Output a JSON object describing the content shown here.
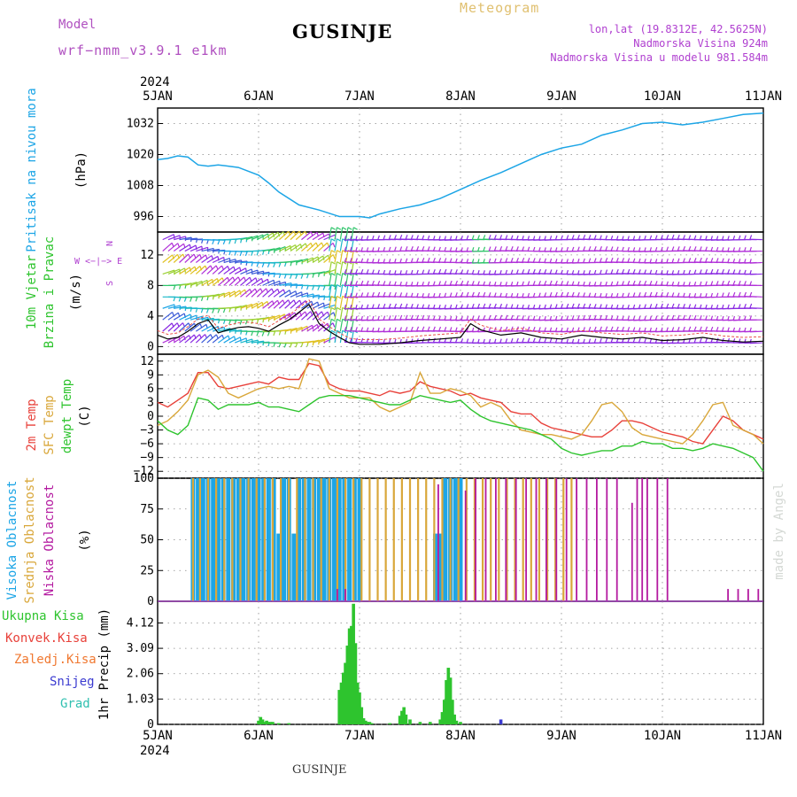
{
  "header": {
    "model_label": "Model",
    "model_name": "wrf−nmm_v3.9.1  e1km",
    "station": "GUSINJE",
    "product": "Meteogram",
    "lonlat": "lon,lat (19.8312E, 42.5625N)",
    "elevation": "Nadmorska Visina 924m",
    "model_elevation": "Nadmorska Visina u modelu 981.584m",
    "footer_station": "GUSINJE",
    "watermark": "made by Angel",
    "year_top": "2024",
    "year_bottom": "2024"
  },
  "colors": {
    "pressure": "#1ca5e6",
    "temp2m": "#e8413a",
    "sfc": "#d9a73a",
    "dew": "#2ec42e",
    "high_cloud": "#1ca5e6",
    "mid_cloud": "#d9a73a",
    "low_cloud": "#b41aa0",
    "precip_total": "#2ec42e",
    "precip_conv": "#e8413a",
    "precip_frz": "#f07830",
    "precip_snow": "#3a3ad0",
    "precip_grad": "#30c0b0",
    "model_label": "#b050c0",
    "product": "#e0c070",
    "meta": "#b040d0"
  },
  "chart_data": [
    {
      "type": "line",
      "panel": "pressure",
      "left_label": "Pritisak na nivou mora",
      "ylabel": "(hPa)",
      "ylim": [
        990,
        1038
      ],
      "yticks": [
        "996",
        "1008",
        "1020",
        "1032"
      ],
      "xticks": [
        "5JAN",
        "6JAN",
        "7JAN",
        "8JAN",
        "9JAN",
        "10JAN",
        "11JAN"
      ],
      "x_days": [
        0,
        0.1,
        0.2,
        0.3,
        0.4,
        0.5,
        0.6,
        0.8,
        1.0,
        1.1,
        1.2,
        1.4,
        1.6,
        1.8,
        2.0,
        2.1,
        2.2,
        2.4,
        2.6,
        2.8,
        3.0,
        3.2,
        3.4,
        3.6,
        3.8,
        4.0,
        4.2,
        4.4,
        4.6,
        4.8,
        5.0,
        5.2,
        5.4,
        5.6,
        5.8,
        6.0
      ],
      "values": [
        1018,
        1018.5,
        1019.5,
        1019,
        1016,
        1015.5,
        1016,
        1015,
        1012,
        1009,
        1005.5,
        1000.5,
        998.5,
        996,
        996,
        995.5,
        997,
        999,
        1000.5,
        1003,
        1006.5,
        1010,
        1013,
        1016.5,
        1020,
        1022.5,
        1024,
        1027.5,
        1029.5,
        1032,
        1032.5,
        1031.5,
        1032.5,
        1034,
        1035.5,
        1036
      ]
    },
    {
      "type": "barb",
      "panel": "wind",
      "left_label": "10m Vjetar",
      "left_label2": "Brzina i Pravac",
      "ylabel": "(m/s)",
      "legend_n": "N",
      "legend_we": "W <−|−> E",
      "legend_s": "S",
      "ylim": [
        -1,
        15
      ],
      "yticks": [
        "0",
        "4",
        "8",
        "12"
      ],
      "speed_x_days": [
        0,
        0.1,
        0.2,
        0.3,
        0.4,
        0.5,
        0.6,
        0.7,
        0.8,
        0.9,
        1.0,
        1.1,
        1.2,
        1.3,
        1.4,
        1.5,
        1.6,
        1.7,
        1.8,
        1.9,
        2.0,
        2.2,
        2.4,
        2.6,
        2.8,
        3.0,
        3.1,
        3.2,
        3.4,
        3.6,
        3.8,
        4.0,
        4.2,
        4.4,
        4.6,
        4.8,
        5.0,
        5.2,
        5.4,
        5.6,
        5.8,
        6.0
      ],
      "speed_values": [
        1.5,
        1.0,
        1.2,
        2.0,
        3.0,
        3.5,
        1.8,
        2.2,
        2.5,
        2.6,
        2.4,
        2.0,
        2.8,
        3.5,
        4.5,
        5.5,
        3.0,
        2.0,
        1.2,
        0.5,
        0.3,
        0.3,
        0.5,
        0.8,
        1.0,
        1.2,
        3.0,
        2.2,
        1.5,
        1.8,
        1.2,
        1.0,
        1.5,
        1.2,
        1.0,
        1.2,
        0.8,
        0.9,
        1.2,
        0.8,
        0.6,
        0.7
      ]
    },
    {
      "type": "line",
      "panel": "temperature",
      "left_label": "2m Temp",
      "left_label2": "SFC Temp",
      "left_label3": "dewpt Temp",
      "ylabel": "(C)",
      "ylim": [
        -13.5,
        13.5
      ],
      "yticks": [
        "12",
        "9",
        "6",
        "3",
        "0",
        "−3",
        "−6",
        "−9",
        "−12"
      ],
      "x_days": [
        0,
        0.1,
        0.2,
        0.3,
        0.4,
        0.5,
        0.6,
        0.7,
        0.8,
        0.9,
        1.0,
        1.1,
        1.2,
        1.3,
        1.4,
        1.5,
        1.6,
        1.7,
        1.8,
        1.9,
        2.0,
        2.1,
        2.2,
        2.3,
        2.4,
        2.5,
        2.6,
        2.7,
        2.8,
        2.9,
        3.0,
        3.1,
        3.2,
        3.3,
        3.4,
        3.5,
        3.6,
        3.7,
        3.8,
        3.9,
        4.0,
        4.1,
        4.2,
        4.3,
        4.4,
        4.5,
        4.6,
        4.7,
        4.8,
        4.9,
        5.0,
        5.1,
        5.2,
        5.3,
        5.4,
        5.5,
        5.6,
        5.7,
        5.8,
        5.9,
        6.0
      ],
      "series": [
        {
          "name": "2m Temp",
          "values": [
            3,
            2,
            3.5,
            5,
            9.5,
            9.5,
            6.5,
            6,
            6.5,
            7,
            7.5,
            7,
            8.5,
            8,
            8,
            11.5,
            11,
            7,
            6,
            5.5,
            5.5,
            5,
            4.5,
            5.5,
            5,
            5.5,
            7.5,
            6.5,
            6,
            5.5,
            4.5,
            5,
            4,
            3.5,
            3,
            1,
            0.5,
            0.5,
            -1.5,
            -2.5,
            -3,
            -3.5,
            -4,
            -4.5,
            -4.5,
            -3,
            -1,
            -1,
            -1.5,
            -2.5,
            -3.5,
            -4,
            -4.5,
            -5.5,
            -6,
            -3,
            0,
            -1,
            -3,
            -4,
            -5
          ]
        },
        {
          "name": "SFC Temp",
          "values": [
            -2,
            -1,
            1,
            3.5,
            9,
            10,
            8.5,
            5,
            4,
            5,
            6,
            6.5,
            6,
            6.5,
            6,
            12.5,
            12,
            6,
            5,
            4,
            4,
            4,
            2,
            1,
            2,
            3,
            9.5,
            5,
            5,
            6,
            5.5,
            4.5,
            2,
            3,
            2,
            -1,
            -3,
            -3.5,
            -4,
            -4,
            -4.5,
            -5,
            -4,
            -1,
            2.5,
            3,
            1,
            -2.5,
            -4,
            -4.5,
            -5,
            -5.5,
            -6,
            -4,
            -1,
            2.5,
            3,
            -2,
            -3,
            -4,
            -6
          ]
        },
        {
          "name": "dewpt Temp",
          "values": [
            -1,
            -3,
            -4,
            -2,
            4,
            3.5,
            1.5,
            2.5,
            2.5,
            2.5,
            3,
            2,
            2,
            1.5,
            1,
            2.5,
            4,
            4.5,
            4.5,
            4.5,
            4,
            3.5,
            3,
            2.5,
            2.5,
            3.5,
            4.5,
            4,
            3.5,
            3,
            3.5,
            1.5,
            0,
            -1,
            -1.5,
            -2,
            -2.5,
            -3,
            -4,
            -5,
            -7,
            -8,
            -8.5,
            -8,
            -7.5,
            -7.5,
            -6.5,
            -6.5,
            -5.5,
            -6,
            -6,
            -7,
            -7,
            -7.5,
            -7,
            -6,
            -6.5,
            -7,
            -8,
            -9,
            -12
          ]
        }
      ]
    },
    {
      "type": "bar",
      "panel": "cloud",
      "left_label": "Visoka Oblacnost",
      "left_label2": "Srednja Oblacnost",
      "left_label3": "Niska  Oblacnost",
      "ylabel": "(%)",
      "ylim": [
        0,
        100
      ],
      "yticks": [
        "0",
        "25",
        "50",
        "75",
        "100"
      ],
      "note": "high: ~100% from 5.35 to 7.0 d (dip to 50-55 near 6.4 d), scattered 7.7-8.0 d; mid: 100% 5.35-9.1 d with dips; low: scattered 8.0-9.6 d, isolated 9.7-10.1 d, small 10-15% near day 5.75-5.95",
      "high_x_days": [
        0.35,
        0.4,
        0.45,
        0.5,
        0.55,
        0.6,
        0.65,
        0.7,
        0.75,
        0.8,
        0.85,
        0.9,
        0.95,
        1.0,
        1.05,
        1.1,
        1.15,
        1.2,
        1.25,
        1.3,
        1.35,
        1.4,
        1.45,
        1.5,
        1.55,
        1.6,
        1.65,
        1.7,
        1.75,
        1.8,
        1.85,
        1.9,
        1.95,
        2.0,
        2.75,
        2.8,
        2.85,
        2.9,
        2.95,
        3.0
      ],
      "high_values": [
        100,
        100,
        100,
        100,
        100,
        100,
        100,
        100,
        100,
        100,
        100,
        100,
        100,
        100,
        100,
        100,
        100,
        55,
        100,
        100,
        55,
        100,
        100,
        100,
        100,
        100,
        100,
        100,
        100,
        100,
        100,
        100,
        100,
        100,
        55,
        55,
        100,
        100,
        100,
        100
      ],
      "mid_x_days": [
        0.35,
        0.42,
        0.5,
        0.58,
        0.66,
        0.74,
        0.82,
        0.9,
        0.98,
        1.06,
        1.14,
        1.22,
        1.3,
        1.38,
        1.46,
        1.54,
        1.62,
        1.7,
        1.78,
        1.86,
        1.94,
        2.02,
        2.1,
        2.18,
        2.26,
        2.34,
        2.42,
        2.5,
        2.58,
        2.66,
        2.74,
        2.82,
        2.9,
        2.98,
        3.06,
        3.14,
        3.22,
        3.3,
        3.38,
        3.46,
        3.54,
        3.62,
        3.7,
        3.78,
        3.86,
        3.94,
        4.02,
        4.1
      ],
      "mid_values": [
        100,
        100,
        100,
        100,
        100,
        100,
        100,
        100,
        100,
        100,
        100,
        100,
        100,
        100,
        100,
        100,
        100,
        100,
        100,
        100,
        100,
        100,
        100,
        100,
        100,
        100,
        100,
        100,
        100,
        100,
        100,
        100,
        100,
        100,
        100,
        100,
        100,
        100,
        100,
        100,
        100,
        100,
        100,
        100,
        100,
        100,
        100,
        100
      ],
      "low_x_days": [
        1.78,
        1.86,
        2.78,
        3.05,
        3.15,
        3.25,
        3.35,
        3.45,
        3.55,
        3.65,
        3.75,
        3.85,
        3.95,
        4.05,
        4.15,
        4.25,
        4.35,
        4.45,
        4.55,
        4.7,
        4.75,
        4.8,
        4.85,
        4.95,
        5.05,
        5.65,
        5.75,
        5.85,
        5.95
      ],
      "low_values": [
        10,
        10,
        95,
        90,
        100,
        100,
        100,
        100,
        100,
        100,
        100,
        100,
        100,
        100,
        100,
        100,
        100,
        100,
        100,
        80,
        100,
        100,
        100,
        100,
        100,
        10,
        10,
        10,
        10
      ]
    },
    {
      "type": "bar",
      "panel": "precip",
      "left_label": "Ukupna  Kisa",
      "left_label2": "Konvek.Kisa",
      "left_label3": "Zaledj.Kisa",
      "left_label4": "Snijeg",
      "left_label5": "Grad",
      "ylabel": "1hr Precip (mm)",
      "ylim": [
        0,
        5.0
      ],
      "yticks": [
        "0",
        "1.03",
        "2.06",
        "3.09",
        "4.12"
      ],
      "x_days": [
        1.0,
        1.02,
        1.04,
        1.06,
        1.08,
        1.1,
        1.12,
        1.14,
        1.2,
        1.3,
        1.8,
        1.82,
        1.84,
        1.86,
        1.88,
        1.9,
        1.92,
        1.94,
        1.96,
        1.98,
        2.0,
        2.02,
        2.04,
        2.06,
        2.08,
        2.1,
        2.12,
        2.3,
        2.4,
        2.42,
        2.44,
        2.46,
        2.5,
        2.6,
        2.7,
        2.8,
        2.82,
        2.84,
        2.86,
        2.88,
        2.9,
        2.92,
        2.94,
        2.96,
        3.0,
        3.4
      ],
      "values": [
        0.15,
        0.3,
        0.2,
        0.1,
        0.15,
        0.1,
        0.1,
        0.1,
        0.05,
        0.05,
        1.4,
        1.7,
        2.1,
        2.5,
        3.2,
        3.9,
        4.0,
        4.9,
        3.3,
        1.7,
        1.3,
        0.7,
        0.25,
        0.15,
        0.1,
        0.1,
        0.05,
        0.05,
        0.35,
        0.55,
        0.7,
        0.4,
        0.2,
        0.1,
        0.1,
        0.2,
        0.5,
        1.0,
        1.8,
        2.3,
        1.9,
        1.0,
        0.4,
        0.15,
        0.1,
        0.2
      ]
    }
  ]
}
